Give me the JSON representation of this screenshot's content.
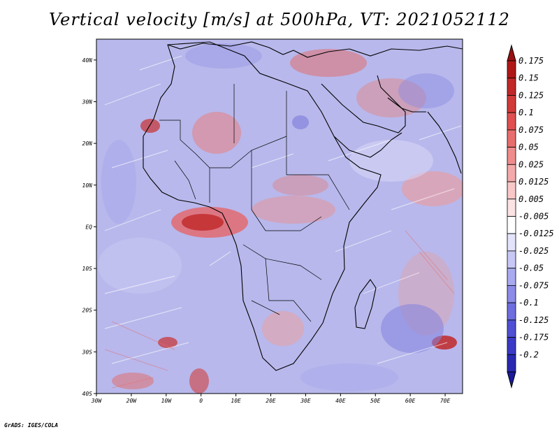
{
  "title": "Vertical velocity [m/s] at 500hPa, VT: 2021052112",
  "credit": "GrADS: IGES/COLA",
  "map": {
    "lon_range": [
      -30,
      75
    ],
    "lat_range": [
      -40,
      45
    ],
    "lat_ticks": [
      {
        "value": 40,
        "label": "40N"
      },
      {
        "value": 30,
        "label": "30N"
      },
      {
        "value": 20,
        "label": "20N"
      },
      {
        "value": 10,
        "label": "10N"
      },
      {
        "value": 0,
        "label": "EQ"
      },
      {
        "value": -10,
        "label": "10S"
      },
      {
        "value": -20,
        "label": "20S"
      },
      {
        "value": -30,
        "label": "30S"
      },
      {
        "value": -40,
        "label": "40S"
      }
    ],
    "lon_ticks": [
      {
        "value": -30,
        "label": "30W"
      },
      {
        "value": -20,
        "label": "20W"
      },
      {
        "value": -10,
        "label": "10W"
      },
      {
        "value": 0,
        "label": "0"
      },
      {
        "value": 10,
        "label": "10E"
      },
      {
        "value": 20,
        "label": "20E"
      },
      {
        "value": 30,
        "label": "30E"
      },
      {
        "value": 40,
        "label": "40E"
      },
      {
        "value": 50,
        "label": "50E"
      },
      {
        "value": 60,
        "label": "60E"
      },
      {
        "value": 70,
        "label": "70E"
      }
    ],
    "field_variable": "vertical velocity",
    "field_units": "m/s",
    "pressure_level": "500hPa"
  },
  "colorbar": {
    "levels": [
      {
        "label": "0.175",
        "color": "#b01818"
      },
      {
        "label": "0.15",
        "color": "#c22828"
      },
      {
        "label": "0.125",
        "color": "#d23a3a"
      },
      {
        "label": "0.1",
        "color": "#e05050"
      },
      {
        "label": "0.075",
        "color": "#e86e6e"
      },
      {
        "label": "0.05",
        "color": "#ef8c8c"
      },
      {
        "label": "0.025",
        "color": "#f4aaaa"
      },
      {
        "label": "0.0125",
        "color": "#f8c8c8"
      },
      {
        "label": "0.005",
        "color": "#fbe3e3"
      },
      {
        "label": "-0.005",
        "color": "#ffffff"
      },
      {
        "label": "-0.0125",
        "color": "#e3e3fb"
      },
      {
        "label": "-0.025",
        "color": "#c8c8f6"
      },
      {
        "label": "-0.05",
        "color": "#aaaaf0"
      },
      {
        "label": "-0.075",
        "color": "#8c8ce8"
      },
      {
        "label": "-0.1",
        "color": "#6e6ee0"
      },
      {
        "label": "-0.125",
        "color": "#5050d4"
      },
      {
        "label": "-0.175",
        "color": "#3a3ac6"
      },
      {
        "label": "-0.2",
        "color": "#2828b0"
      }
    ],
    "top_arrow_color": "#9a1010",
    "bottom_arrow_color": "#1a1a9a"
  },
  "colors": {
    "background_field": "#b8b8ec",
    "coast_line": "#000000"
  }
}
